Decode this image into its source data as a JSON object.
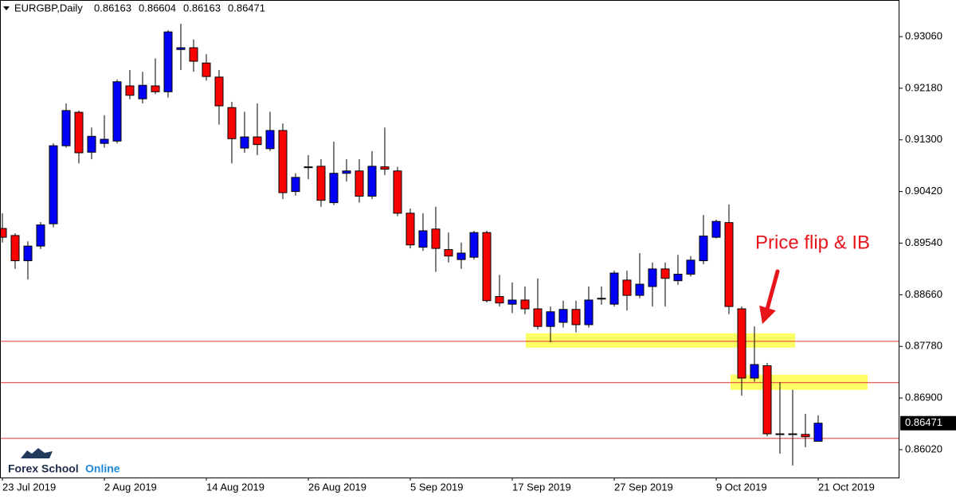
{
  "chart_data": {
    "type": "candlestick",
    "symbol": "EURGBP,Daily",
    "categories": [
      "23 Jul 2019",
      null,
      null,
      null,
      null,
      null,
      null,
      null,
      "2 Aug 2019",
      null,
      null,
      null,
      null,
      null,
      null,
      null,
      "14 Aug 2019",
      null,
      null,
      null,
      null,
      null,
      null,
      null,
      "26 Aug 2019",
      null,
      null,
      null,
      null,
      null,
      null,
      null,
      "5 Sep 2019",
      null,
      null,
      null,
      null,
      null,
      null,
      null,
      "17 Sep 2019",
      null,
      null,
      null,
      null,
      null,
      null,
      null,
      "27 Sep 2019",
      null,
      null,
      null,
      null,
      null,
      null,
      null,
      "9 Oct 2019",
      null,
      null,
      null,
      null,
      null,
      null,
      null,
      "21 Oct 2019"
    ],
    "open": [
      0.8979,
      0.8967,
      0.8924,
      0.8949,
      0.8987,
      0.912,
      0.9177,
      0.9109,
      0.9124,
      0.9128,
      0.9222,
      0.92,
      0.9222,
      0.9212,
      0.9284,
      0.9287,
      0.9261,
      0.9237,
      0.9185,
      0.9116,
      0.9135,
      0.9115,
      0.9146,
      0.9042,
      0.9084,
      0.9085,
      0.9023,
      0.9073,
      0.9077,
      0.9034,
      0.9084,
      0.9077,
      0.9005,
      0.8947,
      0.8978,
      0.8943,
      0.8926,
      0.893,
      0.8972,
      0.8863,
      0.885,
      0.8857,
      0.8842,
      0.8812,
      0.8819,
      0.8841,
      0.8815,
      0.886,
      0.885,
      0.8891,
      0.8865,
      0.888,
      0.891,
      0.889,
      0.8901,
      0.8924,
      0.8964,
      0.8989,
      0.8842,
      0.8724,
      0.8745,
      0.8629,
      0.8629,
      0.8628,
      0.86163
    ],
    "high": [
      0.9005,
      0.8971,
      0.8957,
      0.899,
      0.9124,
      0.9192,
      0.918,
      0.9151,
      0.9172,
      0.9233,
      0.9249,
      0.9246,
      0.9269,
      0.9317,
      0.9328,
      0.9301,
      0.9276,
      0.9249,
      0.9195,
      0.9178,
      0.9192,
      0.9178,
      0.9158,
      0.9073,
      0.9104,
      0.9097,
      0.9127,
      0.9097,
      0.9097,
      0.9111,
      0.9151,
      0.9084,
      0.9013,
      0.9005,
      0.9016,
      0.8972,
      0.8955,
      0.8975,
      0.8975,
      0.89,
      0.8887,
      0.888,
      0.8894,
      0.8846,
      0.8856,
      0.8856,
      0.888,
      0.888,
      0.8907,
      0.8907,
      0.8937,
      0.8921,
      0.8921,
      0.8934,
      0.8932,
      0.9002,
      0.8994,
      0.902,
      0.8846,
      0.8812,
      0.875,
      0.8717,
      0.8704,
      0.8663,
      0.86604
    ],
    "low": [
      0.8955,
      0.891,
      0.8892,
      0.8944,
      0.8981,
      0.9117,
      0.909,
      0.9097,
      0.9117,
      0.9124,
      0.9199,
      0.9192,
      0.9208,
      0.9202,
      0.9249,
      0.9246,
      0.9231,
      0.9156,
      0.909,
      0.9108,
      0.9104,
      0.9111,
      0.9029,
      0.9035,
      0.9063,
      0.9016,
      0.9019,
      0.9059,
      0.9023,
      0.9029,
      0.907,
      0.9,
      0.8945,
      0.8941,
      0.8905,
      0.8921,
      0.891,
      0.8926,
      0.8853,
      0.8846,
      0.8835,
      0.8833,
      0.8807,
      0.8785,
      0.881,
      0.8802,
      0.881,
      0.8849,
      0.8846,
      0.8839,
      0.886,
      0.8846,
      0.8846,
      0.8883,
      0.8897,
      0.8918,
      0.8962,
      0.8833,
      0.8694,
      0.8718,
      0.8625,
      0.8595,
      0.8575,
      0.8606,
      0.86163
    ],
    "close": [
      0.8964,
      0.8924,
      0.8949,
      0.8985,
      0.912,
      0.918,
      0.9108,
      0.9136,
      0.9131,
      0.9229,
      0.9206,
      0.9223,
      0.9212,
      0.9314,
      0.9287,
      0.9264,
      0.9238,
      0.9188,
      0.9132,
      0.9135,
      0.9122,
      0.9146,
      0.904,
      0.9066,
      0.9083,
      0.9027,
      0.9073,
      0.9077,
      0.9034,
      0.9085,
      0.908,
      0.9005,
      0.8951,
      0.8975,
      0.8945,
      0.8932,
      0.8937,
      0.8972,
      0.8856,
      0.8852,
      0.8857,
      0.8842,
      0.8812,
      0.8837,
      0.8841,
      0.8815,
      0.8857,
      0.8859,
      0.8903,
      0.8865,
      0.8884,
      0.891,
      0.8894,
      0.8901,
      0.8925,
      0.8966,
      0.8991,
      0.8846,
      0.8724,
      0.8747,
      0.8629,
      0.8628,
      0.8628,
      0.8624,
      0.86471
    ],
    "up_color": "#0000ff",
    "down_color": "#ff0000",
    "ylim": [
      0.85545,
      0.93684
    ],
    "yticks": [
      {
        "value": 0.9306,
        "label": "0.93060"
      },
      {
        "value": 0.9218,
        "label": "0.92180"
      },
      {
        "value": 0.913,
        "label": "0.91300"
      },
      {
        "value": 0.9042,
        "label": "0.90420"
      },
      {
        "value": 0.8954,
        "label": "0.89540"
      },
      {
        "value": 0.8866,
        "label": "0.88660"
      },
      {
        "value": 0.8778,
        "label": "0.87780"
      },
      {
        "value": 0.869,
        "label": "0.86900"
      },
      {
        "value": 0.8602,
        "label": "0.86020"
      }
    ],
    "levels": [
      0.87867,
      0.87162,
      0.86212
    ],
    "level_color": "#e03030",
    "zones": [
      [
        0.87758,
        0.88002
      ],
      [
        0.8704,
        0.87297
      ]
    ],
    "zone_color": "#ffff66",
    "annotation": "Price flip & IB"
  },
  "logo": [
    "Forex School",
    "Online"
  ]
}
